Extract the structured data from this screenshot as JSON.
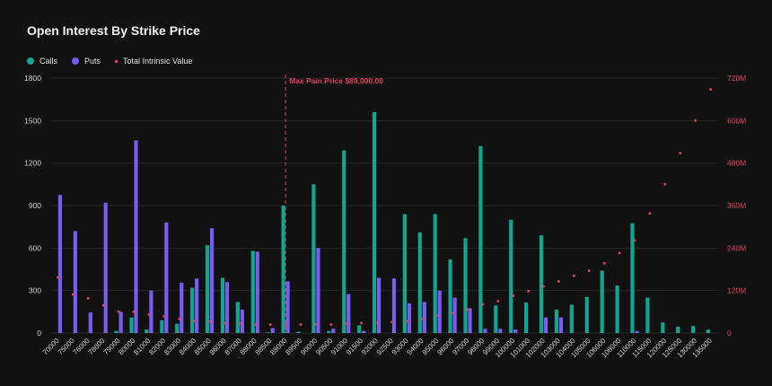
{
  "chart_data": {
    "type": "bar",
    "title": "Open Interest By Strike Price",
    "categories": [
      "70000",
      "75000",
      "76000",
      "78000",
      "79000",
      "80000",
      "81000",
      "82000",
      "83000",
      "84000",
      "85000",
      "86000",
      "87000",
      "88000",
      "88500",
      "89000",
      "89500",
      "90000",
      "90500",
      "91000",
      "91500",
      "92000",
      "92500",
      "93000",
      "94000",
      "95000",
      "96000",
      "97000",
      "98000",
      "99000",
      "100000",
      "101000",
      "102000",
      "103000",
      "104000",
      "105000",
      "106000",
      "108000",
      "110000",
      "115000",
      "120000",
      "125000",
      "130000",
      "135000"
    ],
    "series": [
      {
        "name": "Calls",
        "axis": "left",
        "color": "#12a592",
        "values": [
          0,
          0,
          0,
          0,
          15,
          110,
          25,
          90,
          65,
          320,
          620,
          390,
          220,
          580,
          5,
          900,
          10,
          1050,
          15,
          1290,
          55,
          1560,
          0,
          840,
          710,
          840,
          520,
          670,
          1320,
          195,
          800,
          215,
          690,
          165,
          200,
          255,
          440,
          335,
          775,
          250,
          75,
          45,
          50,
          25
        ]
      },
      {
        "name": "Puts",
        "axis": "left",
        "color": "#7b5cf0",
        "values": [
          975,
          720,
          145,
          920,
          150,
          1360,
          300,
          780,
          355,
          385,
          740,
          360,
          165,
          575,
          35,
          365,
          0,
          600,
          30,
          275,
          15,
          390,
          385,
          210,
          220,
          300,
          250,
          175,
          30,
          30,
          25,
          0,
          110,
          110,
          0,
          0,
          0,
          0,
          15,
          0,
          0,
          0,
          0,
          0
        ]
      },
      {
        "name": "Total Intrinsic Value",
        "axis": "right",
        "type": "scatter",
        "color": "#e0415c",
        "values": [
          157,
          109,
          98,
          78,
          60,
          60,
          52,
          47,
          40,
          34,
          32,
          28,
          26,
          24,
          24,
          24,
          24,
          24,
          24,
          26,
          28,
          30,
          31,
          33,
          39,
          49,
          57,
          66,
          81,
          90,
          105,
          118,
          132,
          146,
          162,
          176,
          197,
          226,
          262,
          338,
          420,
          508,
          600,
          688
        ]
      }
    ],
    "ylim": [
      0,
      1800
    ],
    "yticks": [
      0,
      300,
      600,
      900,
      1200,
      1500,
      1800
    ],
    "y2lim": [
      0,
      720
    ],
    "y2ticks": [
      0,
      120,
      240,
      360,
      480,
      600,
      720
    ],
    "y2ticklabels": [
      "0",
      "120M",
      "240M",
      "360M",
      "480M",
      "600M",
      "720M"
    ],
    "annotation": {
      "category": "89000",
      "label": "Max Pain Price $89,000.00",
      "color": "#e0415c"
    },
    "legend": "top-left",
    "grid": true
  }
}
